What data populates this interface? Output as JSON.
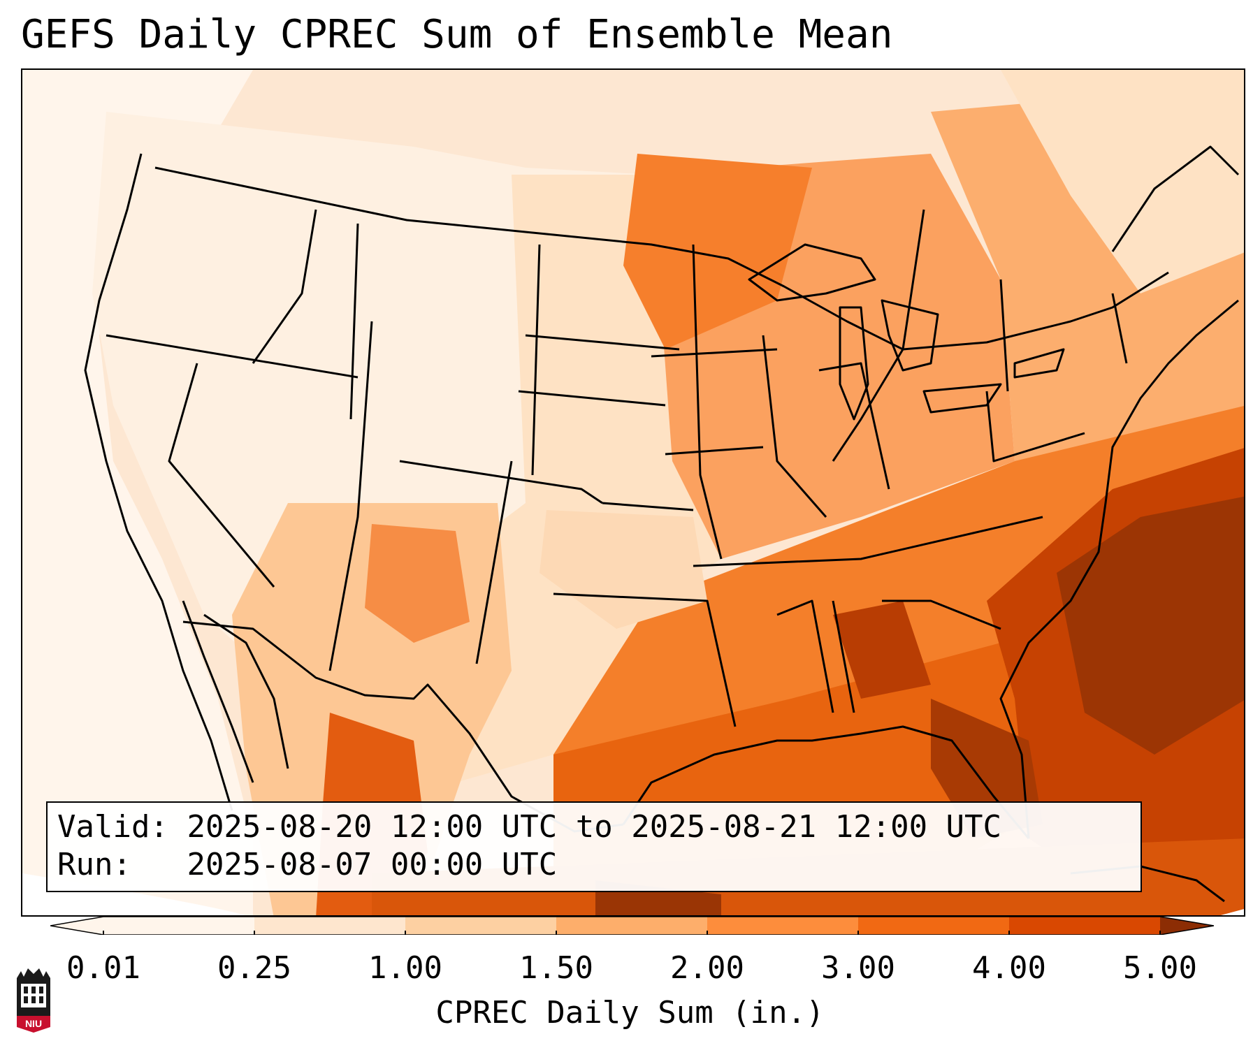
{
  "title": "GEFS Daily CPREC Sum of Ensemble Mean",
  "info": {
    "valid_label": "Valid:",
    "valid_value": "2025-08-20 12:00 UTC to 2025-08-21 12:00 UTC",
    "run_label": "Run:",
    "run_value": "2025-08-07 00:00 UTC"
  },
  "colorbar": {
    "label": "CPREC Daily Sum (in.)",
    "ticks": [
      "0.01",
      "0.25",
      "1.00",
      "1.50",
      "2.00",
      "3.00",
      "4.00",
      "5.00"
    ],
    "colors": [
      "#fff5eb",
      "#fee6ce",
      "#fdd0a2",
      "#fdae6b",
      "#fd8d3c",
      "#f16913",
      "#d94801",
      "#8c2d04"
    ]
  },
  "logo": {
    "text": "NIU",
    "color": "#c8102e"
  }
}
